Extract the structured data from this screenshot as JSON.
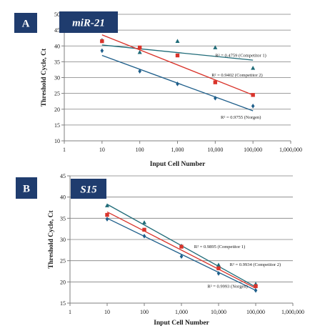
{
  "colors": {
    "panel_label_bg": "#1f3c6e",
    "gene_label_bg": "#1f3c6e",
    "competitor1": "#1f6b78",
    "competitor2": "#d9342b",
    "norgen": "#1f5f8b",
    "grid": "#7f7f7f",
    "axis": "#7f7f7f",
    "text": "#1a1a1a"
  },
  "chart_data": [
    {
      "type": "scatter",
      "panel": "A",
      "gene": "miR-21",
      "xlabel": "Input Cell Number",
      "ylabel": "Threshold Cycle, Ct",
      "x_scale": "log",
      "xlim": [
        1,
        1000000
      ],
      "ylim": [
        10,
        50
      ],
      "x_ticks": [
        1,
        10,
        100,
        1000,
        10000,
        100000,
        1000000
      ],
      "x_tick_labels": [
        "1",
        "10",
        "100",
        "1,000",
        "10,000",
        "100,000",
        "1,000,000"
      ],
      "y_ticks": [
        10,
        15,
        20,
        25,
        30,
        35,
        40,
        45,
        50
      ],
      "y_tick_labels": [
        "10",
        "15",
        "20",
        "25",
        "30",
        "35",
        "40",
        "45",
        "50"
      ],
      "grid": "horizontal",
      "series": [
        {
          "marker": "triangle",
          "color_key": "competitor1",
          "points": [
            [
              10,
              41.8
            ],
            [
              100,
              38.0
            ],
            [
              1000,
              41.5
            ],
            [
              10000,
              39.5
            ],
            [
              100000,
              33.0
            ]
          ],
          "fit": [
            [
              10,
              40.3
            ],
            [
              100000,
              35.5
            ]
          ],
          "annotation": "R² =  0.4759 (Competitor 1)",
          "annotation_at": [
            10000,
            36.5
          ]
        },
        {
          "marker": "square",
          "color_key": "competitor2",
          "points": [
            [
              10,
              41.5
            ],
            [
              100,
              39.5
            ],
            [
              1000,
              37.0
            ],
            [
              10000,
              28.5
            ],
            [
              100000,
              24.5
            ]
          ],
          "fit": [
            [
              10,
              43.5
            ],
            [
              100000,
              24.5
            ]
          ],
          "annotation": "R² =  0.9402 (Competitor 2)",
          "annotation_at": [
            8000,
            30.3
          ]
        },
        {
          "marker": "diamond",
          "color_key": "norgen",
          "points": [
            [
              10,
              38.5
            ],
            [
              100,
              32.0
            ],
            [
              1000,
              28.0
            ],
            [
              10000,
              23.5
            ],
            [
              100000,
              21.0
            ]
          ],
          "fit": [
            [
              10,
              37.0
            ],
            [
              100000,
              19.5
            ]
          ],
          "annotation": "R² =  0.9755 (Norgen)",
          "annotation_at": [
            14000,
            17.0
          ]
        }
      ]
    },
    {
      "type": "scatter",
      "panel": "B",
      "gene": "S15",
      "xlabel": "Input Cell Number",
      "ylabel": "Threshold Cycle, Ct",
      "x_scale": "log",
      "xlim": [
        1,
        1000000
      ],
      "ylim": [
        15,
        45
      ],
      "x_ticks": [
        1,
        10,
        100,
        1000,
        10000,
        100000,
        1000000
      ],
      "x_tick_labels": [
        "1",
        "10",
        "100",
        "1,000",
        "10,000",
        "100,000",
        "1,000,000"
      ],
      "y_ticks": [
        15,
        20,
        25,
        30,
        35,
        40,
        45
      ],
      "y_tick_labels": [
        "15",
        "20",
        "25",
        "30",
        "35",
        "40",
        "45"
      ],
      "grid": "horizontal",
      "series": [
        {
          "marker": "triangle",
          "color_key": "competitor1",
          "points": [
            [
              10,
              38.0
            ],
            [
              100,
              34.0
            ],
            [
              1000,
              28.5
            ],
            [
              10000,
              24.0
            ],
            [
              100000,
              19.5
            ]
          ],
          "fit": [
            [
              10,
              38.3
            ],
            [
              100000,
              18.8
            ]
          ],
          "annotation": "R² =  0.9895 (Competitor 1)",
          "annotation_at": [
            2200,
            28.0
          ]
        },
        {
          "marker": "square",
          "color_key": "competitor2",
          "points": [
            [
              10,
              35.8
            ],
            [
              100,
              32.3
            ],
            [
              1000,
              28.3
            ],
            [
              10000,
              23.2
            ],
            [
              100000,
              19.0
            ]
          ],
          "fit": [
            [
              10,
              36.5
            ],
            [
              100000,
              18.5
            ]
          ],
          "annotation": "R² =  0.9934 (Competitor 2)",
          "annotation_at": [
            20000,
            23.8
          ]
        },
        {
          "marker": "diamond",
          "color_key": "norgen",
          "points": [
            [
              10,
              34.8
            ],
            [
              100,
              30.8
            ],
            [
              1000,
              26.0
            ],
            [
              10000,
              22.0
            ],
            [
              100000,
              18.0
            ]
          ],
          "fit": [
            [
              10,
              35.0
            ],
            [
              100000,
              18.0
            ]
          ],
          "annotation": "R² =  0.9993 (Norgen)",
          "annotation_at": [
            5000,
            18.6
          ]
        }
      ]
    }
  ]
}
